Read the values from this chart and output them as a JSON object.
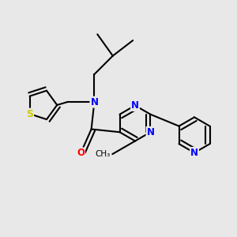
{
  "bg_color": "#e8e8e8",
  "atom_colors": {
    "N": "#0000ff",
    "O": "#ff0000",
    "S": "#cccc00",
    "C": "#000000"
  },
  "bond_color": "#000000",
  "bond_width": 1.5,
  "xlim": [
    -0.2,
    3.8
  ],
  "ylim": [
    -0.2,
    3.8
  ]
}
